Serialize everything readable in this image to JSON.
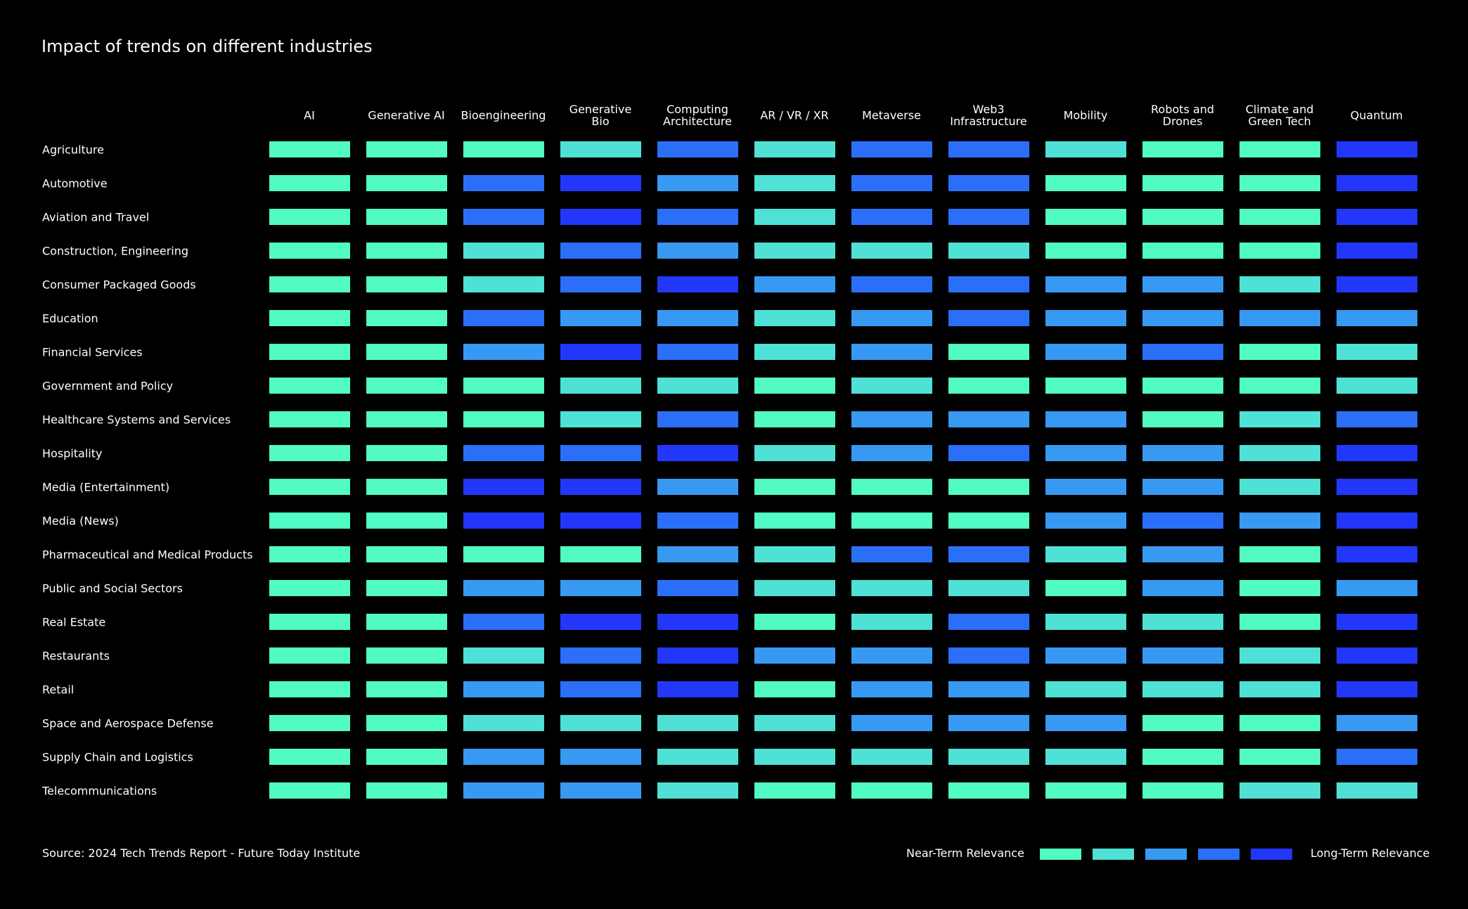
{
  "chart_data": {
    "type": "heatmap",
    "title": "Impact of trends on different industries",
    "columns": [
      "AI",
      "Generative AI",
      "Bioengineering",
      "Generative\nBio",
      "Computing\nArchitecture",
      "AR / VR / XR",
      "Metaverse",
      "Web3\nInfrastructure",
      "Mobility",
      "Robots and\nDrones",
      "Climate and\nGreen Tech",
      "Quantum"
    ],
    "rows": [
      "Agriculture",
      "Automotive",
      "Aviation and Travel",
      "Construction, Engineering",
      "Consumer Packaged Goods",
      "Education",
      "Financial Services",
      "Government and Policy",
      "Healthcare Systems and Services",
      "Hospitality",
      "Media (Entertainment)",
      "Media (News)",
      "Pharmaceutical and Medical Products",
      "Public and Social Sectors",
      "Real Estate",
      "Restaurants",
      "Retail",
      "Space and Aerospace Defense",
      "Supply Chain and Logistics",
      "Telecommunications"
    ],
    "scale": "1 = Near-Term Relevance ... 5 = Long-Term Relevance",
    "values": [
      [
        1,
        1,
        1,
        2,
        4,
        2,
        4,
        4,
        2,
        1,
        1,
        5
      ],
      [
        1,
        1,
        4,
        5,
        3,
        2,
        4,
        4,
        1,
        1,
        1,
        5
      ],
      [
        1,
        1,
        4,
        5,
        4,
        2,
        4,
        4,
        1,
        1,
        1,
        5
      ],
      [
        1,
        1,
        2,
        4,
        3,
        2,
        2,
        2,
        1,
        1,
        1,
        5
      ],
      [
        1,
        1,
        2,
        4,
        5,
        3,
        4,
        4,
        3,
        3,
        2,
        5
      ],
      [
        1,
        1,
        4,
        3,
        3,
        2,
        3,
        4,
        3,
        3,
        3,
        3
      ],
      [
        1,
        1,
        3,
        5,
        4,
        2,
        3,
        1,
        3,
        4,
        1,
        2
      ],
      [
        1,
        1,
        1,
        2,
        2,
        1,
        2,
        1,
        1,
        1,
        1,
        2
      ],
      [
        1,
        1,
        1,
        2,
        4,
        1,
        3,
        3,
        3,
        1,
        2,
        4
      ],
      [
        1,
        1,
        4,
        4,
        5,
        2,
        3,
        4,
        3,
        3,
        2,
        5
      ],
      [
        1,
        1,
        5,
        5,
        3,
        1,
        1,
        1,
        3,
        3,
        2,
        5
      ],
      [
        1,
        1,
        5,
        5,
        4,
        1,
        1,
        1,
        3,
        4,
        3,
        5
      ],
      [
        1,
        1,
        1,
        1,
        3,
        2,
        4,
        4,
        2,
        3,
        1,
        5
      ],
      [
        1,
        1,
        3,
        3,
        4,
        2,
        2,
        2,
        1,
        3,
        1,
        3
      ],
      [
        1,
        1,
        4,
        5,
        5,
        1,
        2,
        4,
        2,
        2,
        1,
        5
      ],
      [
        1,
        1,
        2,
        4,
        5,
        3,
        3,
        4,
        3,
        3,
        2,
        5
      ],
      [
        1,
        1,
        3,
        4,
        5,
        1,
        3,
        3,
        2,
        2,
        2,
        5
      ],
      [
        1,
        1,
        2,
        2,
        2,
        2,
        3,
        3,
        3,
        1,
        1,
        3
      ],
      [
        1,
        1,
        3,
        3,
        2,
        2,
        2,
        2,
        2,
        1,
        1,
        4
      ],
      [
        1,
        1,
        3,
        3,
        2,
        1,
        1,
        1,
        1,
        1,
        2,
        2
      ]
    ],
    "colors": [
      "#52fbc4",
      "#4fe0d6",
      "#3899f2",
      "#2b6ff8",
      "#2337fb"
    ],
    "legend": {
      "near_label": "Near-Term Relevance",
      "long_label": "Long-Term Relevance",
      "placement": "bottom-right"
    }
  },
  "source": "Source: 2024 Tech Trends Report - Future Today Institute"
}
